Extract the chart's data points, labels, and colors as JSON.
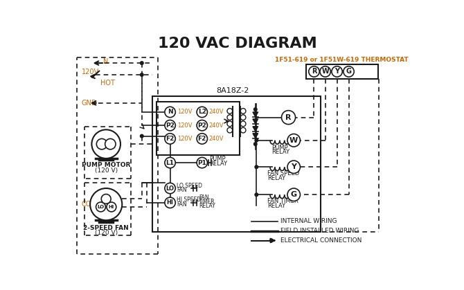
{
  "title": "120 VAC DIAGRAM",
  "title_color": "#1a1a1a",
  "title_fontsize": 16,
  "bg_color": "#ffffff",
  "line_color": "#1a1a1a",
  "orange_color": "#cc6600",
  "thermostat_label": "1F51-619 or 1F51W-619 THERMOSTAT",
  "control_box_label": "8A18Z-2",
  "legend_internal": "INTERNAL WIRING",
  "legend_field": "FIELD INSTALLED WIRING",
  "legend_elec": "ELECTRICAL CONNECTION"
}
